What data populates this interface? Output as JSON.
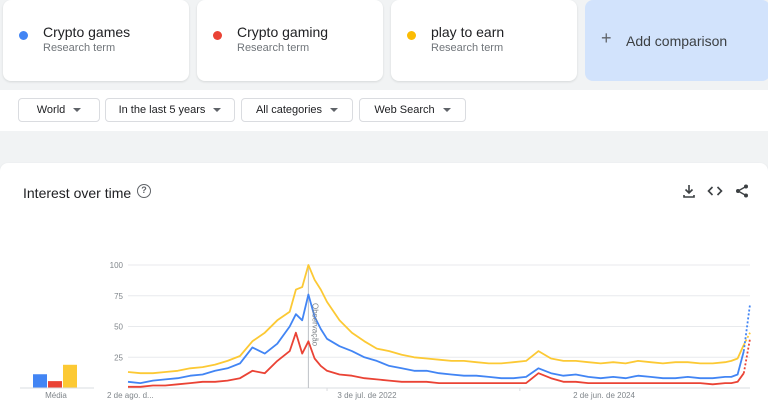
{
  "terms": [
    {
      "name": "Crypto games",
      "sub": "Research term",
      "color": "#4285f4"
    },
    {
      "name": "Crypto gaming",
      "sub": "Research term",
      "color": "#ea4335"
    },
    {
      "name": "play to earn",
      "sub": "Research term",
      "color": "#fbbc04"
    }
  ],
  "add_comparison": {
    "plus": "+",
    "label": "Add comparison"
  },
  "filters": {
    "region": "World",
    "time": "In the last 5 years",
    "category": "All categories",
    "source": "Web Search"
  },
  "chart": {
    "title": "Interest over time",
    "help_glyph": "?",
    "average_label": "Média",
    "note_label": "Observação"
  },
  "chart_data": {
    "type": "line",
    "title": "Interest over time",
    "y_ticks": [
      "100",
      "75",
      "50",
      "25"
    ],
    "ylim": [
      0,
      100
    ],
    "x_tick_labels": [
      "2 de ago. d...",
      "3 de jul. de 2022",
      "2 de jun. de 2024"
    ],
    "grid": true,
    "note_marker_x": 0.29,
    "averages": [
      {
        "name": "Crypto games",
        "value": 16
      },
      {
        "name": "Crypto gaming",
        "value": 8
      },
      {
        "name": "play to earn",
        "value": 27
      }
    ],
    "series": [
      {
        "name": "Crypto games",
        "color": "#4285f4",
        "x": [
          0,
          0.02,
          0.04,
          0.06,
          0.08,
          0.1,
          0.12,
          0.14,
          0.16,
          0.18,
          0.2,
          0.22,
          0.24,
          0.26,
          0.27,
          0.28,
          0.29,
          0.3,
          0.31,
          0.32,
          0.34,
          0.36,
          0.38,
          0.4,
          0.42,
          0.44,
          0.46,
          0.48,
          0.5,
          0.52,
          0.54,
          0.56,
          0.58,
          0.6,
          0.62,
          0.64,
          0.66,
          0.68,
          0.7,
          0.72,
          0.74,
          0.76,
          0.78,
          0.8,
          0.82,
          0.84,
          0.86,
          0.88,
          0.9,
          0.92,
          0.94,
          0.96,
          0.97,
          0.98,
          0.99,
          1.0
        ],
        "y": [
          5,
          4,
          6,
          7,
          8,
          10,
          11,
          14,
          16,
          20,
          33,
          28,
          36,
          50,
          60,
          55,
          76,
          58,
          48,
          40,
          34,
          30,
          25,
          22,
          18,
          16,
          14,
          14,
          12,
          11,
          10,
          10,
          9,
          8,
          8,
          9,
          16,
          12,
          10,
          11,
          9,
          8,
          9,
          8,
          10,
          9,
          8,
          8,
          9,
          8,
          8,
          9,
          9,
          11,
          30,
          68
        ]
      },
      {
        "name": "Crypto gaming",
        "color": "#ea4335",
        "x": [
          0,
          0.02,
          0.04,
          0.06,
          0.08,
          0.1,
          0.12,
          0.14,
          0.16,
          0.18,
          0.2,
          0.22,
          0.24,
          0.26,
          0.27,
          0.28,
          0.29,
          0.3,
          0.31,
          0.32,
          0.34,
          0.36,
          0.38,
          0.4,
          0.42,
          0.44,
          0.46,
          0.48,
          0.5,
          0.52,
          0.54,
          0.56,
          0.58,
          0.6,
          0.62,
          0.64,
          0.66,
          0.68,
          0.7,
          0.72,
          0.74,
          0.76,
          0.78,
          0.8,
          0.82,
          0.84,
          0.86,
          0.88,
          0.9,
          0.92,
          0.94,
          0.96,
          0.97,
          0.98,
          0.99,
          1.0
        ],
        "y": [
          1,
          1,
          2,
          2,
          3,
          4,
          5,
          5,
          6,
          8,
          14,
          12,
          22,
          30,
          45,
          28,
          38,
          24,
          18,
          14,
          11,
          10,
          8,
          7,
          6,
          5,
          5,
          5,
          4,
          4,
          4,
          4,
          4,
          4,
          4,
          4,
          12,
          8,
          5,
          5,
          4,
          4,
          4,
          4,
          4,
          4,
          4,
          4,
          4,
          4,
          3,
          4,
          4,
          5,
          12,
          40
        ]
      },
      {
        "name": "play to earn",
        "color": "#fcc934",
        "x": [
          0,
          0.02,
          0.04,
          0.06,
          0.08,
          0.1,
          0.12,
          0.14,
          0.16,
          0.18,
          0.2,
          0.22,
          0.24,
          0.26,
          0.27,
          0.28,
          0.29,
          0.3,
          0.31,
          0.32,
          0.34,
          0.36,
          0.38,
          0.4,
          0.42,
          0.44,
          0.46,
          0.48,
          0.5,
          0.52,
          0.54,
          0.56,
          0.58,
          0.6,
          0.62,
          0.64,
          0.66,
          0.68,
          0.7,
          0.72,
          0.74,
          0.76,
          0.78,
          0.8,
          0.82,
          0.84,
          0.86,
          0.88,
          0.9,
          0.92,
          0.94,
          0.96,
          0.97,
          0.98,
          0.99,
          1.0
        ],
        "y": [
          13,
          12,
          12,
          13,
          14,
          16,
          17,
          19,
          22,
          26,
          38,
          45,
          55,
          62,
          80,
          82,
          100,
          88,
          80,
          70,
          55,
          45,
          38,
          32,
          30,
          27,
          25,
          24,
          23,
          22,
          22,
          21,
          20,
          20,
          21,
          22,
          30,
          24,
          22,
          22,
          21,
          20,
          21,
          20,
          22,
          21,
          20,
          21,
          21,
          20,
          20,
          21,
          22,
          24,
          35,
          45
        ]
      }
    ]
  }
}
